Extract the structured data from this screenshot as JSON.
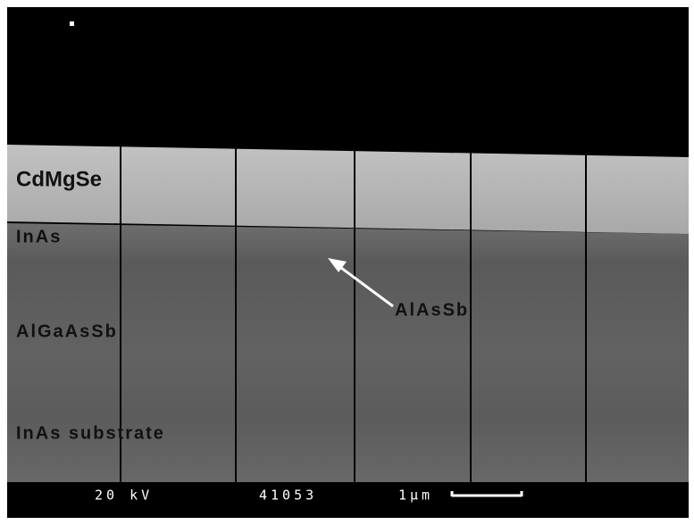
{
  "image": {
    "layer_labels": [
      "CdMgSe",
      "InAs",
      "AlGaAsSb",
      "InAs substrate"
    ],
    "annotation": "AlAsSb",
    "footer": {
      "voltage": "20 kV",
      "image_id": "41053",
      "scale": "1μm"
    }
  }
}
